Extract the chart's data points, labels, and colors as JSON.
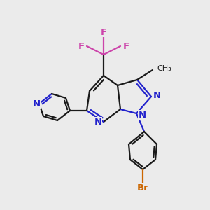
{
  "background_color": "#ebebeb",
  "bond_color": "#1a1a1a",
  "atom_colors": {
    "N": "#2222cc",
    "F": "#cc44aa",
    "Br": "#cc6600",
    "C": "#1a1a1a"
  },
  "figsize": [
    3.0,
    3.0
  ],
  "dpi": 100,
  "lw": 1.6
}
